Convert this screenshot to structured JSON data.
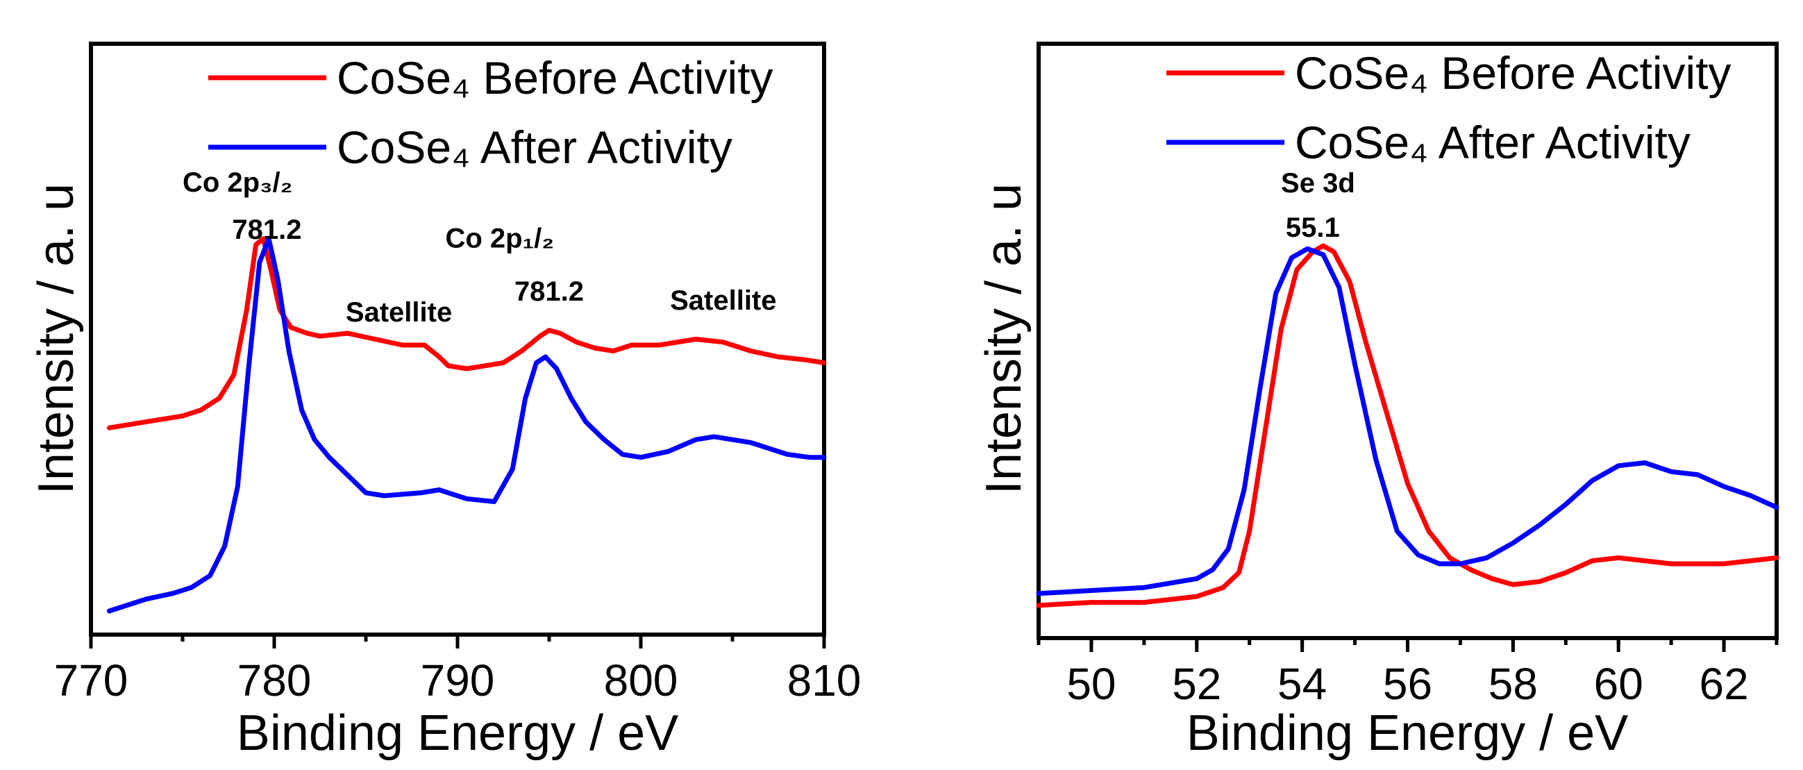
{
  "chart_data": [
    {
      "type": "line",
      "xlabel": "Binding Energy / eV",
      "ylabel": "Intensity / a. u",
      "xlim": [
        770,
        810
      ],
      "ylim": [
        0,
        100
      ],
      "xticks": [
        "770",
        "780",
        "790",
        "800",
        "810"
      ],
      "legend": {
        "placement": "top-right",
        "entries": [
          "CoSe₄ Before Activity",
          "CoSe₄ After Activity"
        ]
      },
      "annotations": [
        {
          "text": "Co 2p₃/₂",
          "x": 778,
          "y": 75
        },
        {
          "text": "781.2",
          "x": 779.6,
          "y": 67
        },
        {
          "text": "Co 2p₁/₂",
          "x": 792.3,
          "y": 65.5
        },
        {
          "text": "781.2",
          "x": 795,
          "y": 56.5
        },
        {
          "text": "Satellite",
          "x": 786.8,
          "y": 53
        },
        {
          "text": "Satellite",
          "x": 804.5,
          "y": 55
        }
      ],
      "series": [
        {
          "name": "CoSe₄ Before Activity",
          "color": "#ff0000",
          "x": [
            771,
            773,
            775,
            776,
            777,
            777.8,
            778.5,
            779,
            779.4,
            779.8,
            780.3,
            780.9,
            781.8,
            782.5,
            784,
            785.5,
            787,
            788.2,
            789,
            789.5,
            790.5,
            791.5,
            792.5,
            793.5,
            794.5,
            795,
            795.6,
            796.5,
            797.5,
            798.5,
            799.5,
            801,
            803,
            804.5,
            806,
            807.5,
            809,
            810
          ],
          "values": [
            35,
            36,
            37,
            38,
            40,
            44,
            55,
            66,
            67,
            62,
            55,
            52,
            51,
            50.5,
            51,
            50,
            49,
            49,
            47,
            45.5,
            45,
            45.5,
            46,
            48,
            50.5,
            51.5,
            51,
            49.5,
            48.5,
            48,
            49,
            49,
            50,
            49.5,
            48,
            47,
            46.5,
            46
          ]
        },
        {
          "name": "CoSe₄ After Activity",
          "color": "#0000ff",
          "x": [
            771,
            773,
            774.5,
            775.5,
            776.5,
            777.3,
            778,
            778.6,
            779.2,
            779.7,
            780.2,
            780.8,
            781.5,
            782.2,
            783,
            784,
            785,
            786,
            788,
            789,
            790.5,
            792,
            793,
            793.7,
            794.3,
            794.8,
            795.4,
            796.2,
            797,
            798,
            799,
            800,
            801.5,
            803,
            804,
            806,
            808,
            809.2,
            810
          ],
          "values": [
            4,
            6,
            7,
            8,
            10,
            15,
            25,
            45,
            63,
            67,
            60,
            48,
            38,
            33,
            30,
            27,
            24,
            23.5,
            24,
            24.5,
            23,
            22.5,
            28,
            40,
            46,
            47,
            45,
            40,
            36,
            33,
            30.5,
            30,
            31,
            33,
            33.5,
            32.5,
            30.5,
            30,
            30
          ]
        }
      ]
    },
    {
      "type": "line",
      "xlabel": "Binding Energy / eV",
      "ylabel": "Intensity / a. u",
      "xlim": [
        49,
        63
      ],
      "ylim": [
        0,
        100
      ],
      "xticks": [
        "50",
        "52",
        "54",
        "56",
        "58",
        "60",
        "62"
      ],
      "legend": {
        "placement": "top-right",
        "entries": [
          "CoSe₄ Before Activity",
          "CoSe₄ After Activity"
        ]
      },
      "annotations": [
        {
          "text": "Se 3d",
          "x": 54.3,
          "y": 75
        },
        {
          "text": "55.1",
          "x": 54.2,
          "y": 67.5
        }
      ],
      "series": [
        {
          "name": "CoSe₄ Before Activity",
          "color": "#ff0000",
          "x": [
            49,
            50,
            51,
            52,
            52.5,
            52.8,
            53,
            53.3,
            53.6,
            53.9,
            54.2,
            54.4,
            54.6,
            54.9,
            55.2,
            55.6,
            56,
            56.4,
            56.8,
            57.2,
            57.6,
            58,
            58.5,
            59,
            59.5,
            60,
            61,
            62,
            63
          ],
          "values": [
            5.5,
            6,
            6,
            7,
            8.5,
            11,
            18,
            35,
            52,
            62,
            65,
            66,
            65,
            60,
            50,
            38,
            26,
            18,
            13.5,
            11.5,
            10,
            9,
            9.5,
            11,
            13,
            13.5,
            12.5,
            12.5,
            13.5
          ]
        },
        {
          "name": "CoSe₄ After Activity",
          "color": "#0000ff",
          "x": [
            49,
            50,
            51,
            52,
            52.3,
            52.6,
            52.9,
            53.2,
            53.5,
            53.8,
            54.1,
            54.4,
            54.7,
            55,
            55.4,
            55.8,
            56.2,
            56.6,
            57,
            57.5,
            58,
            58.5,
            59,
            59.5,
            60,
            60.5,
            61,
            61.5,
            62,
            62.5,
            63
          ],
          "values": [
            7.5,
            8,
            8.5,
            10,
            11.5,
            15,
            25,
            42,
            58,
            64,
            65.5,
            64.5,
            59,
            46,
            30,
            18,
            14,
            12.5,
            12.5,
            13.5,
            16,
            19,
            22.5,
            26.5,
            29,
            29.5,
            28,
            27.5,
            25.5,
            24,
            22
          ]
        }
      ]
    }
  ]
}
